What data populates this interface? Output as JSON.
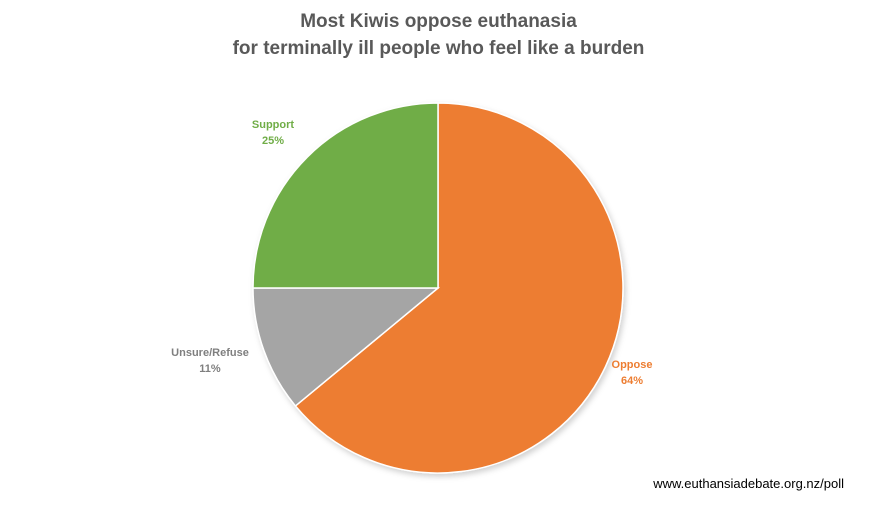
{
  "chart_data": {
    "type": "pie",
    "title": "Most Kiwis oppose euthanasia",
    "subtitle": "for terminally ill people who feel like a burden",
    "slices": [
      {
        "label": "Oppose",
        "value": 64,
        "value_label": "64%",
        "color": "#ED7D31"
      },
      {
        "label": "Unsure/Refuse",
        "value": 11,
        "value_label": "11%",
        "color": "#A5A5A5"
      },
      {
        "label": "Support",
        "value": 25,
        "value_label": "25%",
        "color": "#70AD47"
      }
    ],
    "legend": "none",
    "start_angle": "12 o'clock",
    "direction": "clockwise"
  },
  "source_text": "www.euthansiadebate.org.nz/poll"
}
